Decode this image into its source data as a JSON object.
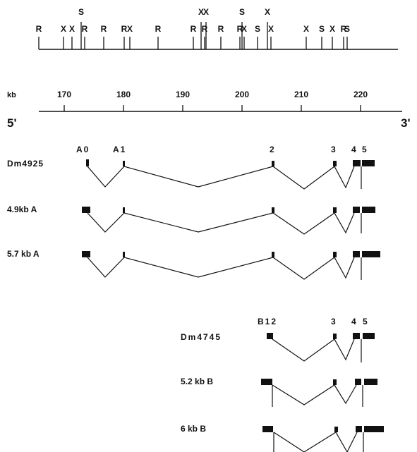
{
  "restriction_map": {
    "sites": [
      {
        "letter": "R",
        "tall": false
      },
      {
        "letter": "X",
        "tall": false
      },
      {
        "letter": "X",
        "tall": false
      },
      {
        "letter": "S",
        "tall": true
      },
      {
        "letter": "R",
        "tall": false
      },
      {
        "letter": "R",
        "tall": false
      },
      {
        "letter": "R",
        "tall": false
      },
      {
        "letter": "X",
        "tall": false
      },
      {
        "letter": "R",
        "tall": false
      },
      {
        "letter": "R",
        "tall": false
      },
      {
        "letter": "X",
        "tall": true
      },
      {
        "letter": "R",
        "tall": false
      },
      {
        "letter": "X",
        "tall": true
      },
      {
        "letter": "R",
        "tall": false
      },
      {
        "letter": "R",
        "tall": false
      },
      {
        "letter": "S",
        "tall": true
      },
      {
        "letter": "X",
        "tall": false
      },
      {
        "letter": "S",
        "tall": false
      },
      {
        "letter": "X",
        "tall": true
      },
      {
        "letter": "X",
        "tall": false
      },
      {
        "letter": "X",
        "tall": false
      },
      {
        "letter": "S",
        "tall": false
      },
      {
        "letter": "X",
        "tall": false
      },
      {
        "letter": "R",
        "tall": false
      },
      {
        "letter": "S",
        "tall": false
      }
    ]
  },
  "scale": {
    "unit_label": "kb",
    "ticks": [
      "170",
      "180",
      "190",
      "200",
      "210",
      "220"
    ],
    "left_end": "5'",
    "right_end": "3'"
  },
  "transcripts_a": {
    "exon_labels": [
      "A0",
      "A1",
      "2",
      "3",
      "4",
      "5"
    ],
    "rows": [
      {
        "name": "Dm4925"
      },
      {
        "name": "4.9kb  A"
      },
      {
        "name": "5.7 kb  A"
      }
    ]
  },
  "transcripts_b": {
    "exon_labels": [
      "B12",
      "3",
      "4",
      "5"
    ],
    "rows": [
      {
        "name": "Dm4745"
      },
      {
        "name": "5.2  kb  B"
      },
      {
        "name": "6  kb  B"
      }
    ]
  }
}
